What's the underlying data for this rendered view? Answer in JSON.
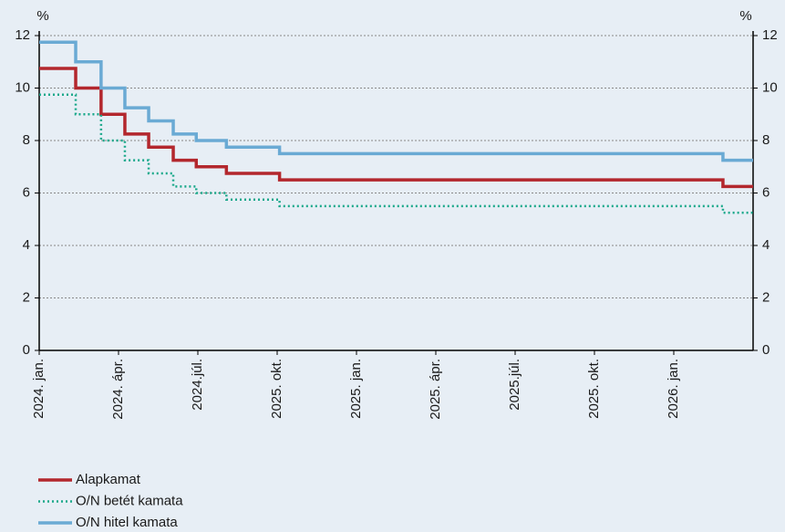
{
  "chart_data": {
    "type": "step-line",
    "y_label": "%",
    "y2_label": "%",
    "xlim": [
      0,
      9
    ],
    "xticks": [
      {
        "value": 0,
        "label": "2024. jan."
      },
      {
        "value": 1,
        "label": "2024. ápr."
      },
      {
        "value": 2,
        "label": "2024.júl."
      },
      {
        "value": 3,
        "label": "2025. okt."
      },
      {
        "value": 4,
        "label": "2025. jan."
      },
      {
        "value": 5,
        "label": "2025. ápr."
      },
      {
        "value": 6,
        "label": "2025.júl."
      },
      {
        "value": 7,
        "label": "2025. okt."
      },
      {
        "value": 8,
        "label": "2026. jan."
      }
    ],
    "ylim": [
      0,
      12
    ],
    "yticks": [
      0,
      2,
      4,
      6,
      8,
      10,
      12
    ],
    "y2lim": [
      0,
      12
    ],
    "y2ticks": [
      0,
      2,
      4,
      6,
      8,
      10,
      12
    ],
    "grid": true,
    "series": [
      {
        "name": "Alapkamat",
        "color": "#b3272d",
        "dash": "solid",
        "x": [
          0,
          0.46,
          0.78,
          1.08,
          1.38,
          1.69,
          1.98,
          2.36,
          3.03,
          8.62
        ],
        "values": [
          10.75,
          10,
          9,
          8.25,
          7.75,
          7.25,
          7,
          6.75,
          6.5,
          6.25
        ]
      },
      {
        "name": "O/N betét kamata",
        "color": "#1aa88a",
        "dash": "dotted",
        "x": [
          0,
          0.46,
          0.78,
          1.08,
          1.38,
          1.69,
          1.98,
          2.36,
          3.03,
          8.62
        ],
        "values": [
          9.75,
          9,
          8,
          7.25,
          6.75,
          6.25,
          6,
          5.75,
          5.5,
          5.25
        ]
      },
      {
        "name": "O/N hitel kamata",
        "color": "#6aaad4",
        "dash": "solid",
        "x": [
          0,
          0.46,
          0.78,
          1.08,
          1.38,
          1.69,
          1.98,
          2.36,
          3.03,
          8.62
        ],
        "values": [
          11.75,
          11,
          10,
          9.25,
          8.75,
          8.25,
          8,
          7.75,
          7.5,
          7.25
        ]
      }
    ]
  }
}
